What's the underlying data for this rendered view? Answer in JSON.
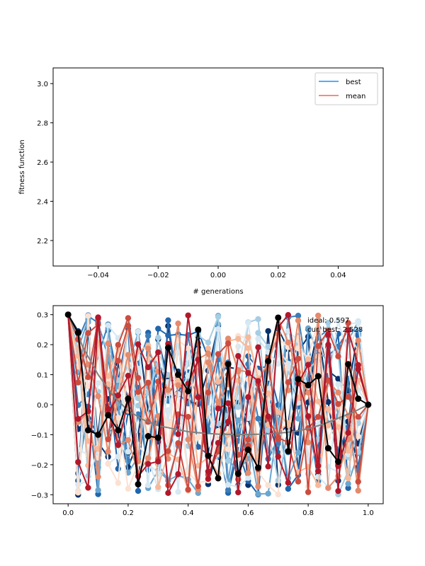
{
  "chart_data": [
    {
      "type": "line",
      "title": "",
      "xlabel": "# generations",
      "ylabel": "fitness function",
      "xlim": [
        -0.055,
        0.055
      ],
      "ylim": [
        2.07,
        3.08
      ],
      "xticks": [
        -0.04,
        -0.02,
        0.0,
        0.02,
        0.04
      ],
      "xtick_labels": [
        "−0.04",
        "−0.02",
        "0.00",
        "0.02",
        "0.04"
      ],
      "yticks": [
        2.2,
        2.4,
        2.6,
        2.8,
        3.0
      ],
      "ytick_labels": [
        "2.2",
        "2.4",
        "2.6",
        "2.8",
        "3.0"
      ],
      "legend_position": "upper right",
      "series": [
        {
          "name": "best",
          "color": "#1e90ff",
          "x": [],
          "y": []
        },
        {
          "name": "mean",
          "color": "#ee6a50",
          "x": [],
          "y": []
        }
      ]
    },
    {
      "type": "line",
      "title": "",
      "xlabel": "",
      "ylabel": "",
      "xlim": [
        -0.05,
        1.05
      ],
      "ylim": [
        -0.33,
        0.33
      ],
      "xticks": [
        0.0,
        0.2,
        0.4,
        0.6,
        0.8,
        1.0
      ],
      "xtick_labels": [
        "0.0",
        "0.2",
        "0.4",
        "0.6",
        "0.8",
        "1.0"
      ],
      "yticks": [
        -0.3,
        -0.2,
        -0.1,
        0.0,
        0.1,
        0.2,
        0.3
      ],
      "ytick_labels": [
        "−0.3",
        "−0.2",
        "−0.1",
        "0.0",
        "0.1",
        "0.2",
        "0.3"
      ],
      "annotations": [
        "ideal: 0.597",
        "cur. best: 2.528"
      ],
      "population_colormap": "RdBu",
      "x": [
        0.0,
        0.0333,
        0.0667,
        0.1,
        0.1333,
        0.1667,
        0.2,
        0.2333,
        0.2667,
        0.3,
        0.3333,
        0.3667,
        0.4,
        0.4333,
        0.4667,
        0.5,
        0.5333,
        0.5667,
        0.6,
        0.6333,
        0.6667,
        0.7,
        0.7333,
        0.7667,
        0.8,
        0.8333,
        0.8667,
        0.9,
        0.9333,
        0.9667,
        1.0
      ],
      "ideal_curve": {
        "color": "#808080",
        "x": [
          0.0,
          0.05,
          0.1,
          0.15,
          0.2,
          0.25,
          0.3,
          0.35,
          0.4,
          0.45,
          0.5,
          0.55,
          0.6,
          0.65,
          0.7,
          0.75,
          0.8,
          0.85,
          0.9,
          0.95,
          1.0
        ],
        "y": [
          0.3,
          0.19,
          0.1,
          0.03,
          -0.02,
          -0.05,
          -0.07,
          -0.08,
          -0.09,
          -0.095,
          -0.098,
          -0.099,
          -0.099,
          -0.098,
          -0.095,
          -0.09,
          -0.08,
          -0.065,
          -0.045,
          -0.025,
          0.0
        ]
      },
      "best_individual": {
        "color": "#000000",
        "y": [
          0.3,
          0.24,
          -0.085,
          -0.1,
          -0.035,
          -0.085,
          0.02,
          -0.265,
          -0.105,
          -0.11,
          0.19,
          0.1,
          0.045,
          0.25,
          -0.17,
          -0.245,
          0.135,
          -0.23,
          -0.15,
          -0.21,
          0.145,
          0.29,
          -0.155,
          0.085,
          0.065,
          0.095,
          -0.145,
          -0.19,
          0.135,
          0.02,
          0.0
        ]
      },
      "population_count": 24
    }
  ]
}
